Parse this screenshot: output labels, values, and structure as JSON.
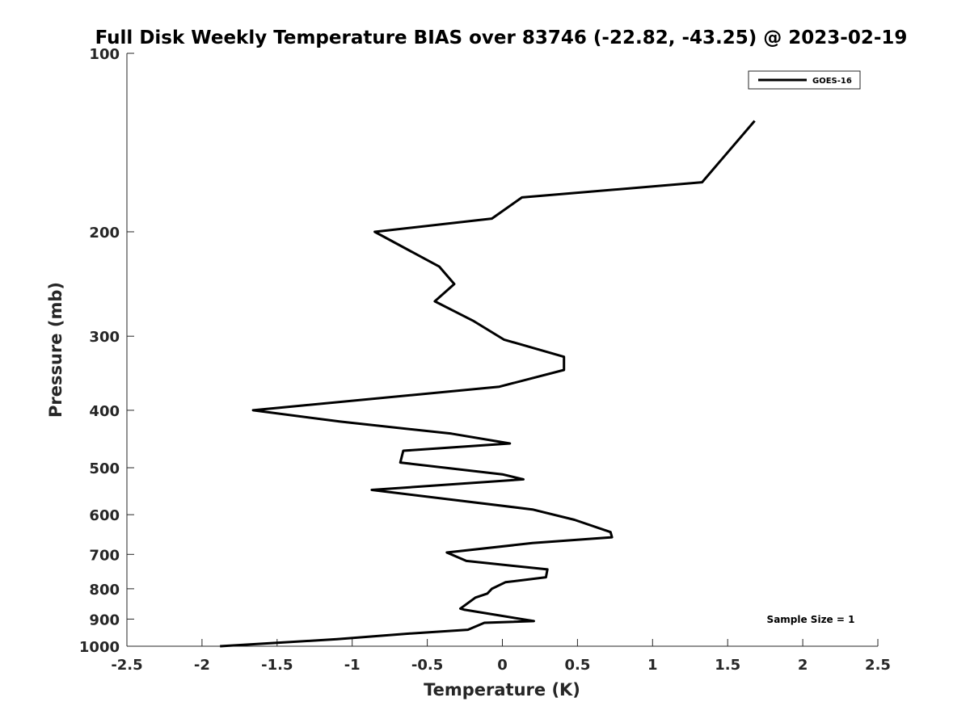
{
  "chart_data": {
    "type": "line",
    "title": "Full Disk Weekly Temperature BIAS over 83746 (-22.82, -43.25) @ 2023-02-19",
    "xlabel": "Temperature (K)",
    "ylabel": "Pressure (mb)",
    "xlim": [
      -2.5,
      2.5
    ],
    "ylim": [
      100,
      1000
    ],
    "y_scale": "log",
    "y_reversed": true,
    "x_ticks": [
      -2.5,
      -2,
      -1.5,
      -1,
      -0.5,
      0,
      0.5,
      1,
      1.5,
      2,
      2.5
    ],
    "x_tick_labels": [
      "-2.5",
      "-2",
      "-1.5",
      "-1",
      "-0.5",
      "0",
      "0.5",
      "1",
      "1.5",
      "2",
      "2.5"
    ],
    "y_ticks": [
      100,
      200,
      300,
      400,
      500,
      600,
      700,
      800,
      900,
      1000
    ],
    "y_tick_labels": [
      "100",
      "200",
      "300",
      "400",
      "500",
      "600",
      "700",
      "800",
      "900",
      "1000"
    ],
    "grid": false,
    "legend_position": "top-right",
    "series": [
      {
        "name": "GOES-16",
        "color": "#000000",
        "x": [
          1.68,
          1.33,
          0.13,
          -0.07,
          -0.85,
          -0.42,
          -0.32,
          -0.45,
          -0.19,
          0.01,
          0.41,
          0.41,
          -0.02,
          -1.66,
          -1.08,
          -0.34,
          0.05,
          -0.66,
          -0.68,
          0.0,
          0.14,
          -0.87,
          0.2,
          0.48,
          0.72,
          0.73,
          0.2,
          -0.37,
          -0.24,
          0.3,
          0.29,
          0.02,
          -0.07,
          -0.1,
          -0.18,
          -0.28,
          -0.25,
          0.21,
          -0.12,
          -0.23,
          -0.65,
          -1.1,
          -1.88
        ],
        "y": [
          130,
          165,
          175,
          190,
          200,
          229,
          245,
          262,
          283,
          304,
          325,
          342,
          365,
          400,
          418,
          438,
          455,
          468,
          490,
          513,
          523,
          545,
          588,
          612,
          642,
          655,
          670,
          695,
          718,
          742,
          765,
          780,
          800,
          815,
          828,
          864,
          868,
          907,
          913,
          938,
          953,
          973,
          1000
        ]
      }
    ],
    "annotations": [
      "Sample Size = 1"
    ]
  }
}
